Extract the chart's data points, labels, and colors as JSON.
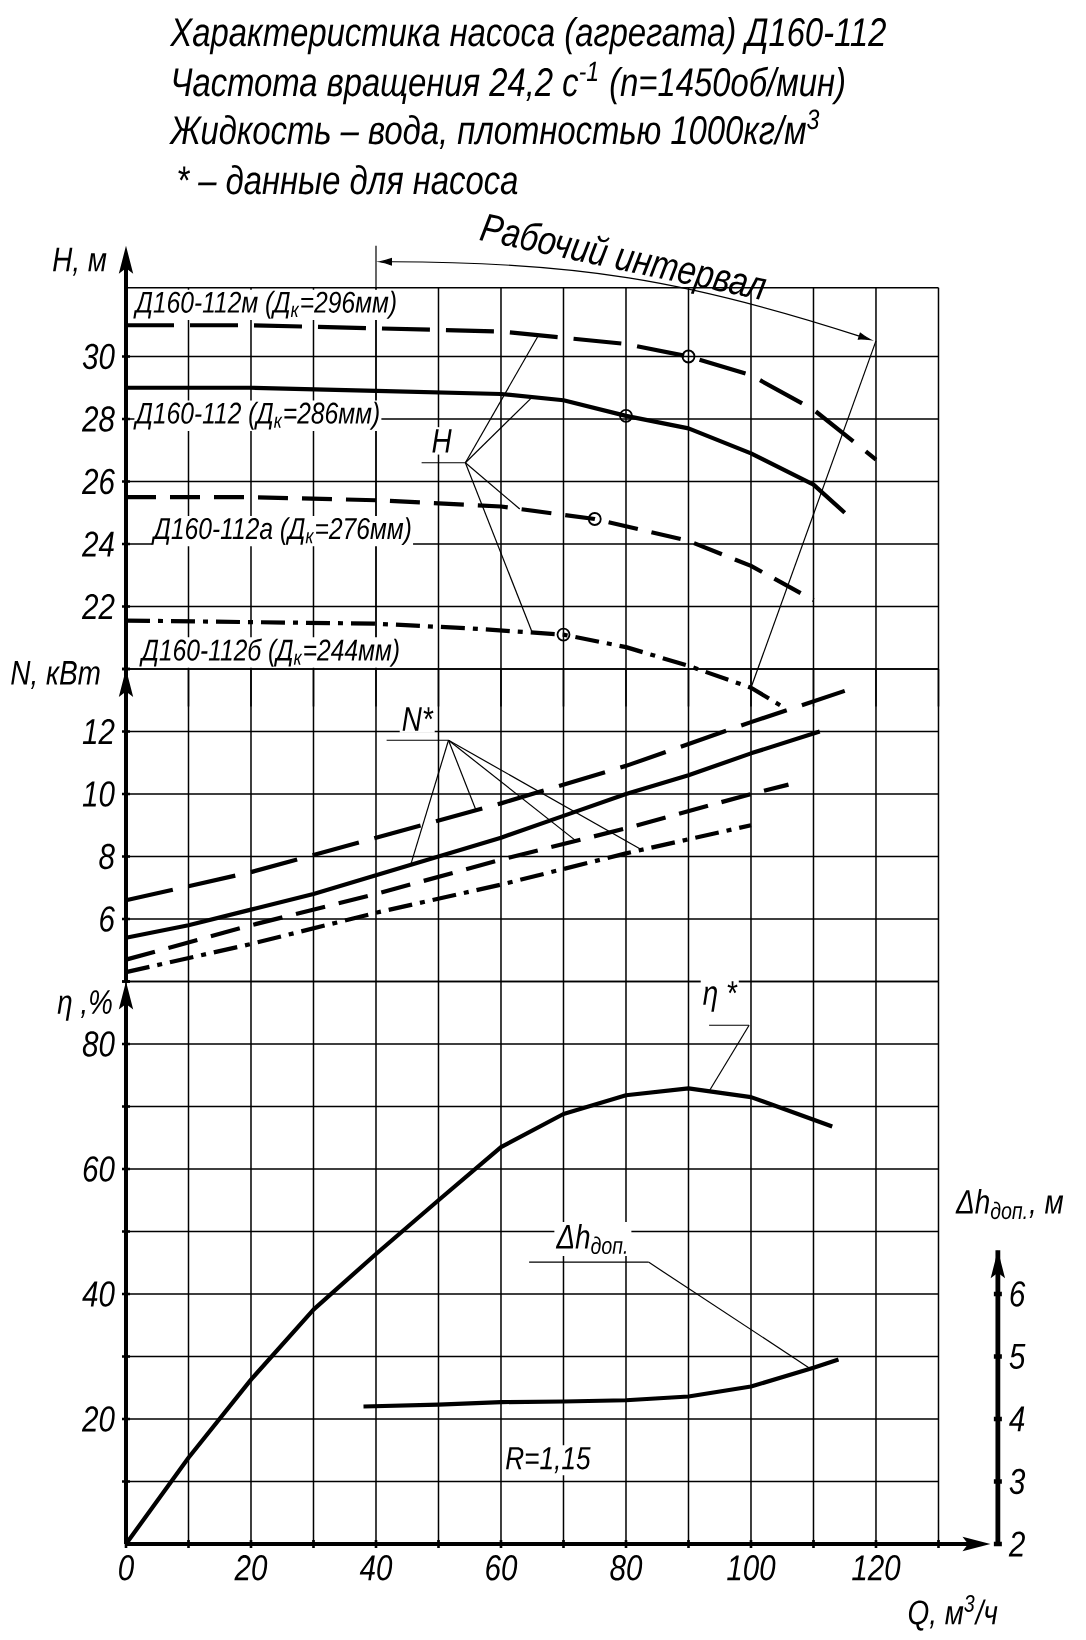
{
  "chart_data": [
    {
      "type": "line",
      "title": "Характеристика насоса (агрегата) Д160-112",
      "subtitle": "Частота вращения 24,2 с$^{-1}$ (n=1450об/мин)",
      "annotations": [
        "Жидкость – вода, плотностью 1000кг/м$^{3}$",
        "* – данные для насоса",
        {
          "text": "H",
          "x": 65,
          "y": 28.7
        },
        "Рабочий интервал"
      ],
      "ylabel": "H, м",
      "xlim": [
        0,
        130
      ],
      "xticks": [
        0,
        {
          "value": 10,
          "label": null
        },
        20,
        {
          "value": 30,
          "label": null
        },
        40,
        {
          "value": 50,
          "label": null
        },
        60,
        {
          "value": 70,
          "label": null
        },
        80,
        {
          "value": 90,
          "label": null
        },
        100,
        {
          "value": 110,
          "label": null
        },
        120,
        {
          "value": 130,
          "label": null
        }
      ],
      "ylim": [
        18.8,
        32.2
      ],
      "yticks": [
        {
          "value": 20,
          "label": null
        },
        22,
        24,
        26,
        28,
        30
      ],
      "tick_labels": "y",
      "grid": true,
      "ref_lines": [
        {
          "axis": "x",
          "value": 40
        }
      ],
      "series": [
        {
          "name": "Д160-112м (Д$_{к}$=296мм)",
          "color": "#000000",
          "line_style": "longdash",
          "x": [
            0,
            20,
            40,
            60,
            70,
            80,
            90,
            100,
            110,
            120
          ],
          "values": [
            31.0,
            31.0,
            30.9,
            30.8,
            30.6,
            30.4,
            30.0,
            29.4,
            28.3,
            26.7
          ]
        },
        {
          "name": "Д160-112 (Д$_{к}$=286мм)",
          "color": "#000000",
          "line_style": "solid",
          "x": [
            0,
            20,
            40,
            60,
            70,
            80,
            90,
            100,
            110,
            115
          ],
          "values": [
            29.0,
            29.0,
            28.9,
            28.8,
            28.6,
            28.1,
            27.7,
            26.9,
            25.9,
            25.0
          ]
        },
        {
          "name": "Д160-112а (Д$_{к}$=276мм)",
          "color": "#000000",
          "line_style": "dashed",
          "x": [
            0,
            20,
            40,
            60,
            75,
            90,
            100,
            110
          ],
          "values": [
            25.5,
            25.5,
            25.4,
            25.2,
            24.8,
            24.1,
            23.3,
            22.2
          ]
        },
        {
          "name": "Д160-112б (Д$_{к}$=244мм)",
          "color": "#000000",
          "line_style": "dashdot",
          "x": [
            0,
            20,
            40,
            55,
            70,
            80,
            90,
            100,
            105
          ],
          "values": [
            21.55,
            21.5,
            21.45,
            21.3,
            21.1,
            20.7,
            20.1,
            19.4,
            18.8
          ]
        },
        {
          "type": "line",
          "color": "#000000",
          "line_style": "solid",
          "x": [
            120,
            100
          ],
          "values": [
            30.5,
            19.4
          ]
        },
        {
          "type": "scatter",
          "color": "#000000",
          "marker": "circle",
          "x": [
            90,
            80,
            75,
            70
          ],
          "values": [
            30.0,
            28.1,
            24.8,
            21.1
          ]
        }
      ]
    },
    {
      "type": "line",
      "ylabel": "N, кВт",
      "annotations": [
        {
          "text": "N*",
          "x": 45.5,
          "y": 7.7
        }
      ],
      "xlim": [
        0,
        130
      ],
      "xticks": [
        0,
        {
          "value": 10,
          "label": null
        },
        20,
        {
          "value": 30,
          "label": null
        },
        40,
        {
          "value": 50,
          "label": null
        },
        60,
        {
          "value": 70,
          "label": null
        },
        80,
        {
          "value": 90,
          "label": null
        },
        100,
        {
          "value": 110,
          "label": null
        },
        120,
        {
          "value": 130,
          "label": null
        }
      ],
      "ylim": [
        4,
        14
      ],
      "yticks": [
        {
          "value": 4,
          "label": null
        },
        6,
        8,
        10,
        12,
        {
          "value": 14,
          "label": null
        }
      ],
      "tick_labels": "y",
      "grid": true,
      "series": [
        {
          "color": "#000000",
          "line_style": "longdash",
          "x": [
            0,
            20,
            40,
            60,
            80,
            100,
            115
          ],
          "values": [
            6.6,
            7.5,
            8.6,
            9.7,
            10.9,
            12.3,
            13.3
          ]
        },
        {
          "color": "#000000",
          "line_style": "solid",
          "x": [
            0,
            10,
            20,
            30,
            40,
            50,
            60,
            70,
            80,
            90,
            100,
            111
          ],
          "values": [
            5.4,
            5.8,
            6.3,
            6.8,
            7.4,
            8.0,
            8.6,
            9.3,
            10.0,
            10.6,
            11.3,
            12.0
          ]
        },
        {
          "color": "#000000",
          "line_style": "dashed",
          "x": [
            0,
            20,
            40,
            60,
            80,
            100,
            106
          ],
          "values": [
            4.7,
            5.8,
            6.8,
            7.9,
            8.9,
            10.0,
            10.3
          ]
        },
        {
          "color": "#000000",
          "line_style": "dashdot",
          "x": [
            0,
            20,
            40,
            60,
            80,
            100
          ],
          "values": [
            4.3,
            5.2,
            6.2,
            7.1,
            8.1,
            9.0
          ]
        }
      ]
    },
    {
      "type": "line",
      "xlabel": "Q, м$^{3}$/ч",
      "ylabel": "η ,%",
      "y2label": "Δh$_{доп.}$, м",
      "annotations": [
        "R=1,15"
      ],
      "xlim": [
        0,
        130
      ],
      "xticks": [
        0,
        {
          "value": 10,
          "label": null
        },
        20,
        {
          "value": 30,
          "label": null
        },
        40,
        {
          "value": 50,
          "label": null
        },
        60,
        {
          "value": 70,
          "label": null
        },
        80,
        {
          "value": 90,
          "label": null
        },
        100,
        {
          "value": 110,
          "label": null
        },
        120,
        {
          "value": 130,
          "label": null
        }
      ],
      "ylim": [
        0,
        90
      ],
      "yticks": [
        {
          "value": 10,
          "label": null
        },
        20,
        {
          "value": 30,
          "label": null
        },
        40,
        {
          "value": 50,
          "label": null
        },
        60,
        {
          "value": 70,
          "label": null
        },
        80,
        {
          "value": 90,
          "label": null
        }
      ],
      "y2lim": [
        2,
        6.7
      ],
      "y2ticks": [
        2,
        3,
        4,
        5,
        6
      ],
      "grid": true,
      "series": [
        {
          "name": "η *",
          "color": "#000000",
          "line_style": "solid",
          "x": [
            0,
            10,
            20,
            30,
            40,
            50,
            60,
            70,
            80,
            90,
            100,
            113
          ],
          "values": [
            0,
            13.8,
            26.3,
            37.5,
            46.4,
            55.0,
            63.5,
            68.8,
            71.8,
            72.9,
            71.5,
            66.8
          ]
        },
        {
          "name": "Δh$_{доп.}$",
          "axis": "y2",
          "color": "#000000",
          "line_style": "solid",
          "x": [
            38,
            50,
            60,
            70,
            80,
            90,
            100,
            110,
            114
          ],
          "values": [
            4.2,
            4.23,
            4.27,
            4.28,
            4.3,
            4.36,
            4.52,
            4.82,
            4.95
          ]
        }
      ]
    }
  ]
}
